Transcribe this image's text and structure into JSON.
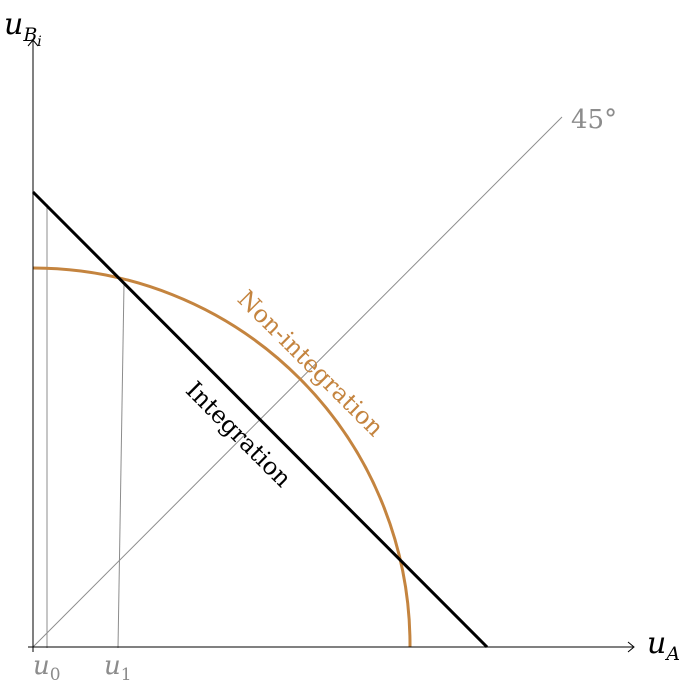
{
  "axes": {
    "y_label_base": "u",
    "y_label_sub": "B",
    "y_label_subsub": "i",
    "x_label_base": "u",
    "x_label_sub": "A"
  },
  "lines": {
    "diagonal_label": "45°",
    "integration_label": "Integration",
    "non_integration_label": "Non-integration"
  },
  "ticks": [
    {
      "base": "u",
      "sub": "0"
    },
    {
      "base": "u",
      "sub": "1"
    }
  ],
  "colors": {
    "axis": "#000000",
    "integration": "#000000",
    "non_integration": "#c4843f",
    "guide": "#8c8c8c"
  }
}
